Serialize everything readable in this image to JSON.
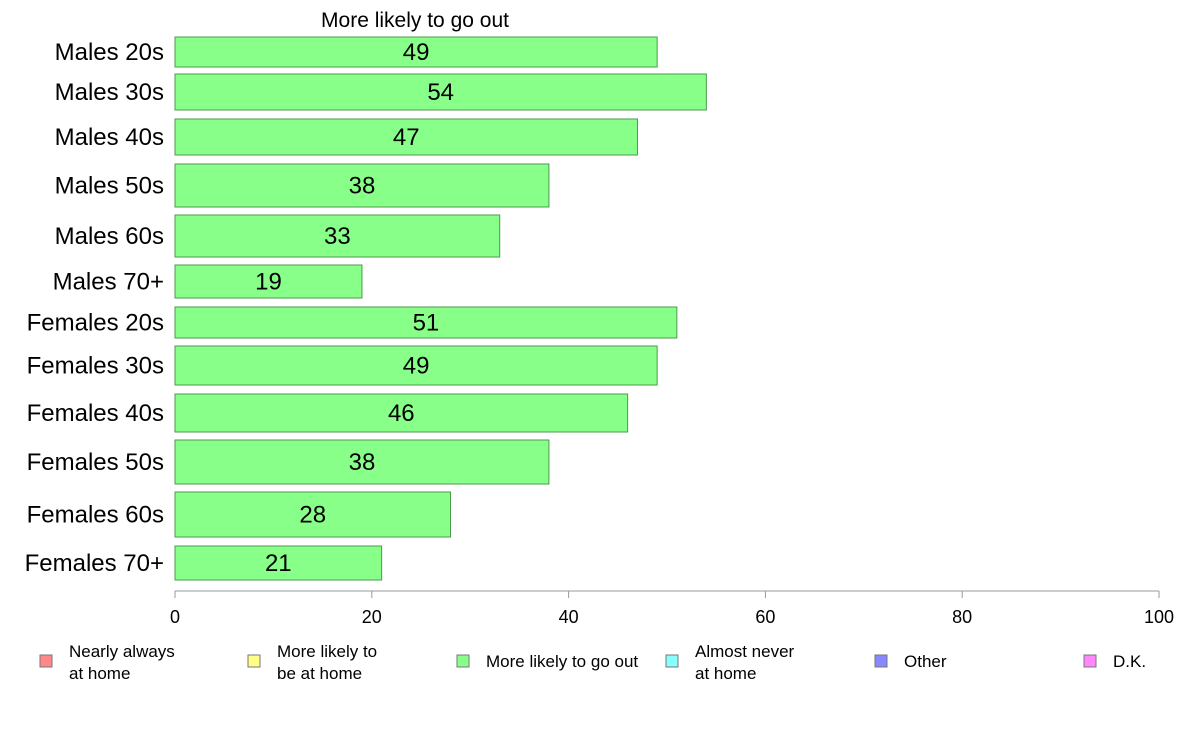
{
  "chart_data": {
    "type": "bar",
    "orientation": "horizontal",
    "title": "More likely to go out",
    "categories": [
      "Males 20s",
      "Males 30s",
      "Males 40s",
      "Males 50s",
      "Males 60s",
      "Males 70+",
      "Females 20s",
      "Females 30s",
      "Females 40s",
      "Females 50s",
      "Females 60s",
      "Females 70+"
    ],
    "series": [
      {
        "name": "More likely to go out",
        "color": "#88ff88",
        "values": [
          49,
          54,
          47,
          38,
          33,
          19,
          51,
          49,
          46,
          38,
          28,
          21
        ]
      }
    ],
    "xlim": [
      0,
      100
    ],
    "xticks": [
      "0",
      "20",
      "40",
      "60",
      "80",
      "100"
    ],
    "grid": false,
    "legend": {
      "placement": "bottom",
      "items": [
        {
          "label": [
            "Nearly always",
            "at home"
          ],
          "color": "#ff8888"
        },
        {
          "label": [
            "More likely to",
            "be at home"
          ],
          "color": "#ffff88"
        },
        {
          "label": [
            "More likely to go out"
          ],
          "color": "#88ff88"
        },
        {
          "label": [
            "Almost never",
            "at home"
          ],
          "color": "#88ffff"
        },
        {
          "label": [
            "Other"
          ],
          "color": "#8888ff"
        },
        {
          "label": [
            "D.K."
          ],
          "color": "#ff88ff"
        }
      ]
    }
  }
}
